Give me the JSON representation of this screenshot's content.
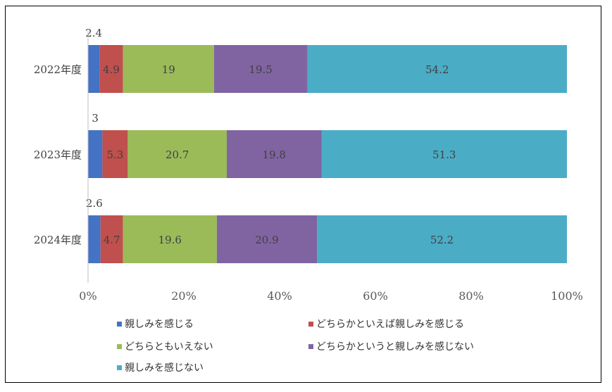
{
  "chart_data": {
    "type": "bar",
    "orientation": "horizontal",
    "stacked": true,
    "normalized": true,
    "categories": [
      "2022年度",
      "2023年度",
      "2024年度"
    ],
    "series": [
      {
        "name": "親しみを感じる",
        "color": "#4472C4",
        "values": [
          2.4,
          3,
          2.6
        ]
      },
      {
        "name": "どちらかといえば親しみを感じる",
        "color": "#C0504D",
        "values": [
          4.9,
          5.3,
          4.7
        ]
      },
      {
        "name": "どちらともいえない",
        "color": "#9BBB59",
        "values": [
          19,
          20.7,
          19.6
        ]
      },
      {
        "name": "どちらかというと親しみを感じない",
        "color": "#8064A2",
        "values": [
          19.5,
          19.8,
          20.9
        ]
      },
      {
        "name": "親しみを感じない",
        "color": "#4BACC6",
        "values": [
          54.2,
          51.3,
          52.2
        ]
      }
    ],
    "xlim": [
      0,
      100
    ],
    "x_ticks": [
      "0%",
      "20%",
      "40%",
      "60%",
      "80%",
      "100%"
    ],
    "grid": false,
    "legend_position": "bottom"
  }
}
